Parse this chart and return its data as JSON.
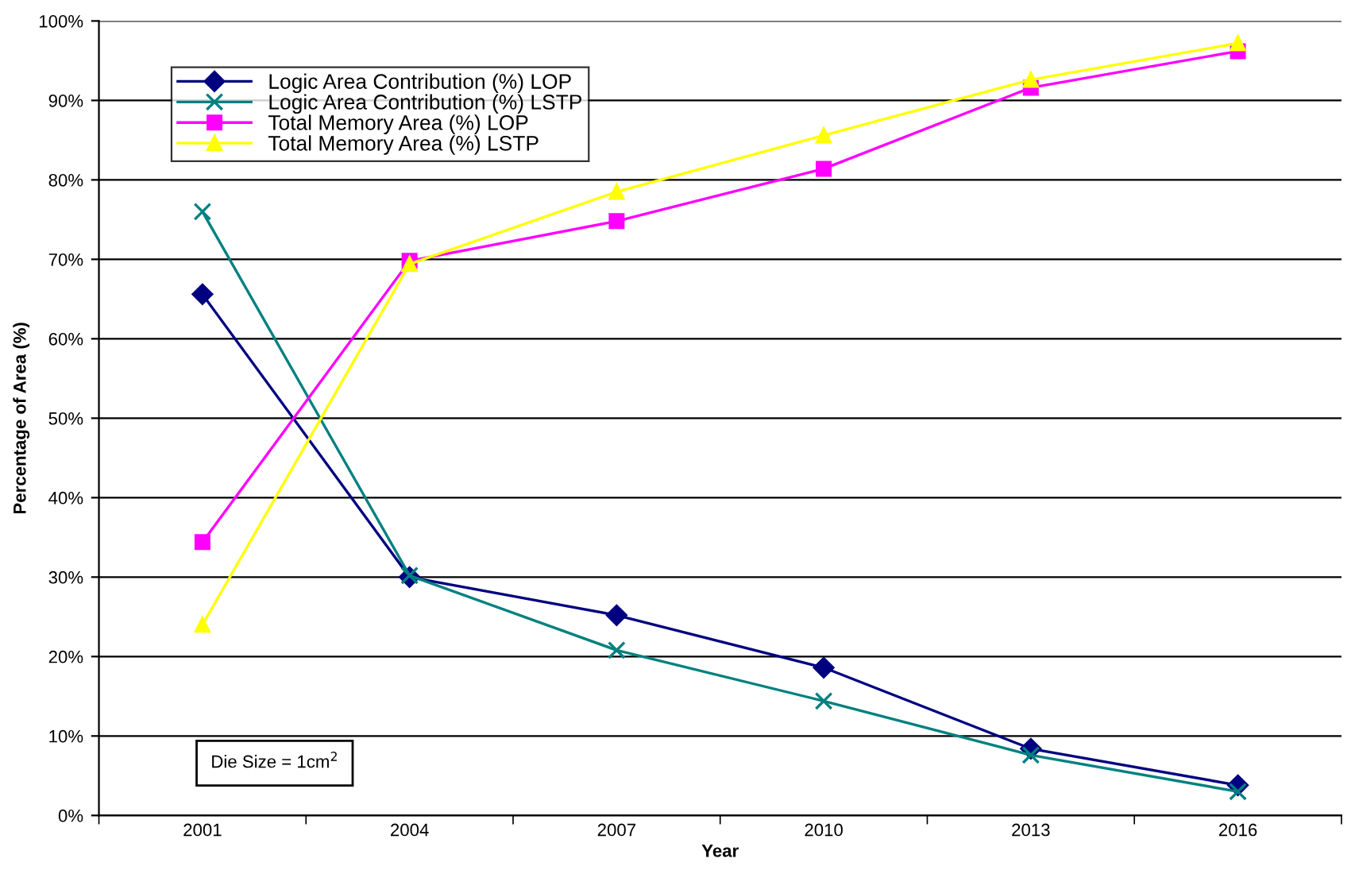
{
  "chart_data": {
    "type": "line",
    "xlabel": "Year",
    "ylabel": "Percentage of Area (%)",
    "categories": [
      "2001",
      "2004",
      "2007",
      "2010",
      "2013",
      "2016"
    ],
    "series": [
      {
        "name": "Logic Area Contribution (%) LOP",
        "color": "#000080",
        "marker": "diamond",
        "values": [
          65.6,
          30,
          25.2,
          18.6,
          8.4,
          3.8
        ]
      },
      {
        "name": "Logic Area Contribution (%) LSTP",
        "color": "#008080",
        "marker": "cross",
        "values": [
          76,
          30.2,
          20.8,
          14.4,
          7.6,
          3
        ]
      },
      {
        "name": "Total Memory Area (%) LOP",
        "color": "#ff00ff",
        "marker": "square",
        "values": [
          34.4,
          69.8,
          74.8,
          81.4,
          91.6,
          96.2
        ]
      },
      {
        "name": "Total Memory Area (%) LSTP",
        "color": "#ffff00",
        "marker": "triangle",
        "values": [
          24,
          69.4,
          78.5,
          85.6,
          92.6,
          97.2
        ]
      }
    ],
    "ylim": [
      0,
      100
    ],
    "yticks": [
      {
        "value": 0,
        "label": "0%"
      },
      {
        "value": 10,
        "label": "10%"
      },
      {
        "value": 20,
        "label": "20%"
      },
      {
        "value": 30,
        "label": "30%"
      },
      {
        "value": 40,
        "label": "40%"
      },
      {
        "value": 50,
        "label": "50%"
      },
      {
        "value": 60,
        "label": "60%"
      },
      {
        "value": 70,
        "label": "70%"
      },
      {
        "value": 80,
        "label": "80%"
      },
      {
        "value": 90,
        "label": "90%"
      },
      {
        "value": 100,
        "label": "100%"
      }
    ],
    "grid": "y",
    "legend": "top left",
    "line_style": "solid",
    "annotations": [
      "Die Size = 1cm$^{2}$"
    ]
  }
}
